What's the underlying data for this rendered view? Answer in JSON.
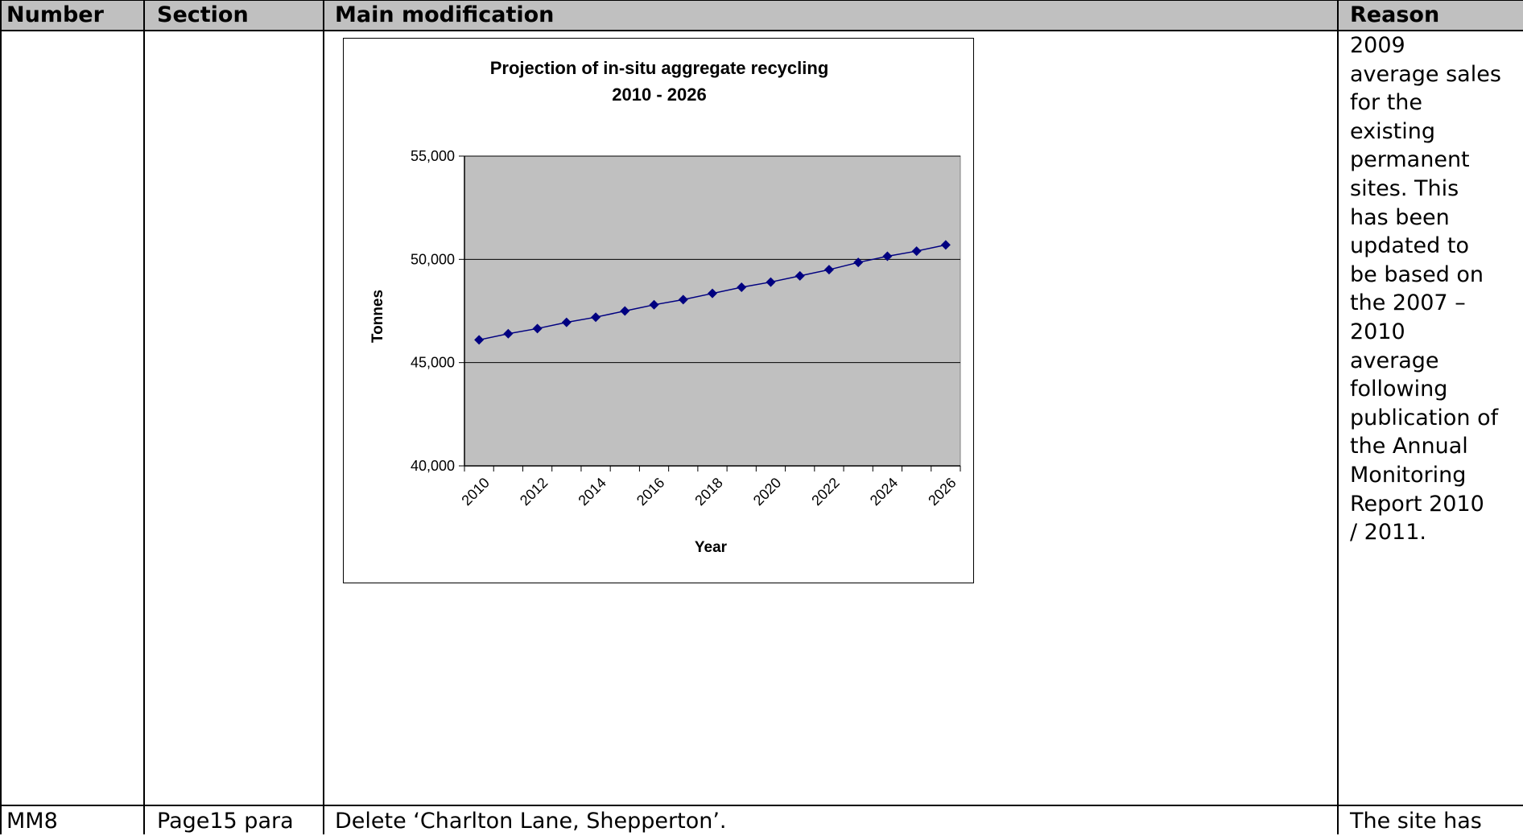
{
  "table": {
    "headers": {
      "number": "Number",
      "section": "Section",
      "main_modification": "Main modification",
      "reason": "Reason"
    },
    "row1": {
      "reason_lines": [
        "2009",
        "average sales",
        "for the",
        "existing",
        "permanent",
        "sites. This",
        "has been",
        "updated to",
        "be based on",
        "the 2007 –",
        "2010",
        "average",
        "following",
        "publication of",
        "the Annual",
        "Monitoring",
        "Report 2010",
        "/ 2011."
      ]
    },
    "row2": {
      "number": "MM8",
      "section": "Page15 para",
      "main_modification": "Delete ‘Charlton Lane, Shepperton’.",
      "reason": "The site has"
    }
  },
  "chart_data": {
    "type": "line",
    "title": "Projection of in-situ aggregate recycling",
    "subtitle": "2010 - 2026",
    "xlabel": "Year",
    "ylabel": "Tonnes",
    "ylim": [
      40000,
      55000
    ],
    "yticks": [
      "40,000",
      "45,000",
      "50,000",
      "55,000"
    ],
    "ytick_values": [
      40000,
      45000,
      50000,
      55000
    ],
    "xticks": [
      "2010",
      "2012",
      "2014",
      "2016",
      "2018",
      "2020",
      "2022",
      "2024",
      "2026"
    ],
    "grid": true,
    "legend": "none",
    "series": [
      {
        "x": [
          2010,
          2011,
          2012,
          2013,
          2014,
          2015,
          2016,
          2017,
          2018,
          2019,
          2020,
          2021,
          2022,
          2023,
          2024,
          2025,
          2026
        ],
        "values": [
          46100,
          46400,
          46650,
          46950,
          47200,
          47500,
          47800,
          48050,
          48350,
          48650,
          48900,
          49200,
          49500,
          49850,
          50150,
          50400,
          50700
        ],
        "color": "#000080"
      }
    ],
    "plot_background": "#c0c0c0"
  }
}
